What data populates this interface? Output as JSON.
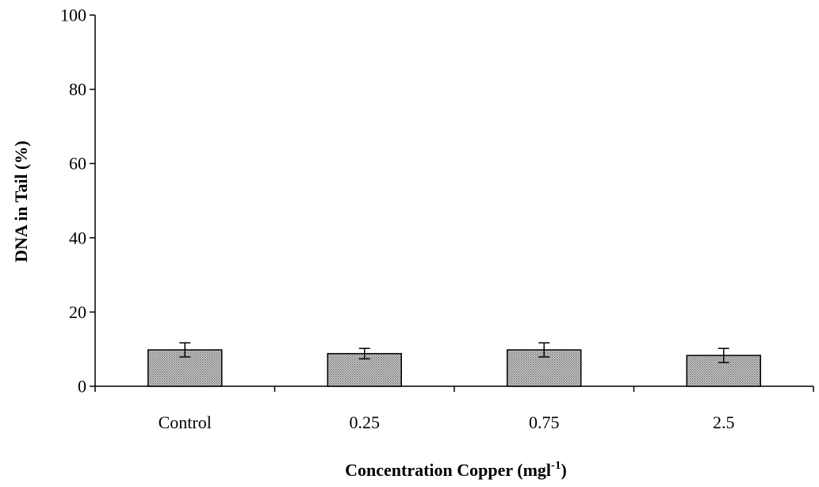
{
  "chart_data": {
    "type": "bar",
    "categories": [
      "Control",
      "0.25",
      "0.75",
      "2.5"
    ],
    "values": [
      9.8,
      8.8,
      9.8,
      8.3
    ],
    "error": [
      1.9,
      1.4,
      1.9,
      1.9
    ],
    "xlabel": "Concentration Copper (mgl",
    "xlabel_sup": "-1",
    "xlabel_tail": ")",
    "ylabel": "DNA in Tail (%)",
    "ylim": [
      0,
      100
    ],
    "yticks": [
      "0",
      "20",
      "40",
      "60",
      "80",
      "100"
    ],
    "bar_fill": "#a9a9a9",
    "bar_pattern": "crosshatch",
    "grid": false,
    "legend": "none"
  }
}
